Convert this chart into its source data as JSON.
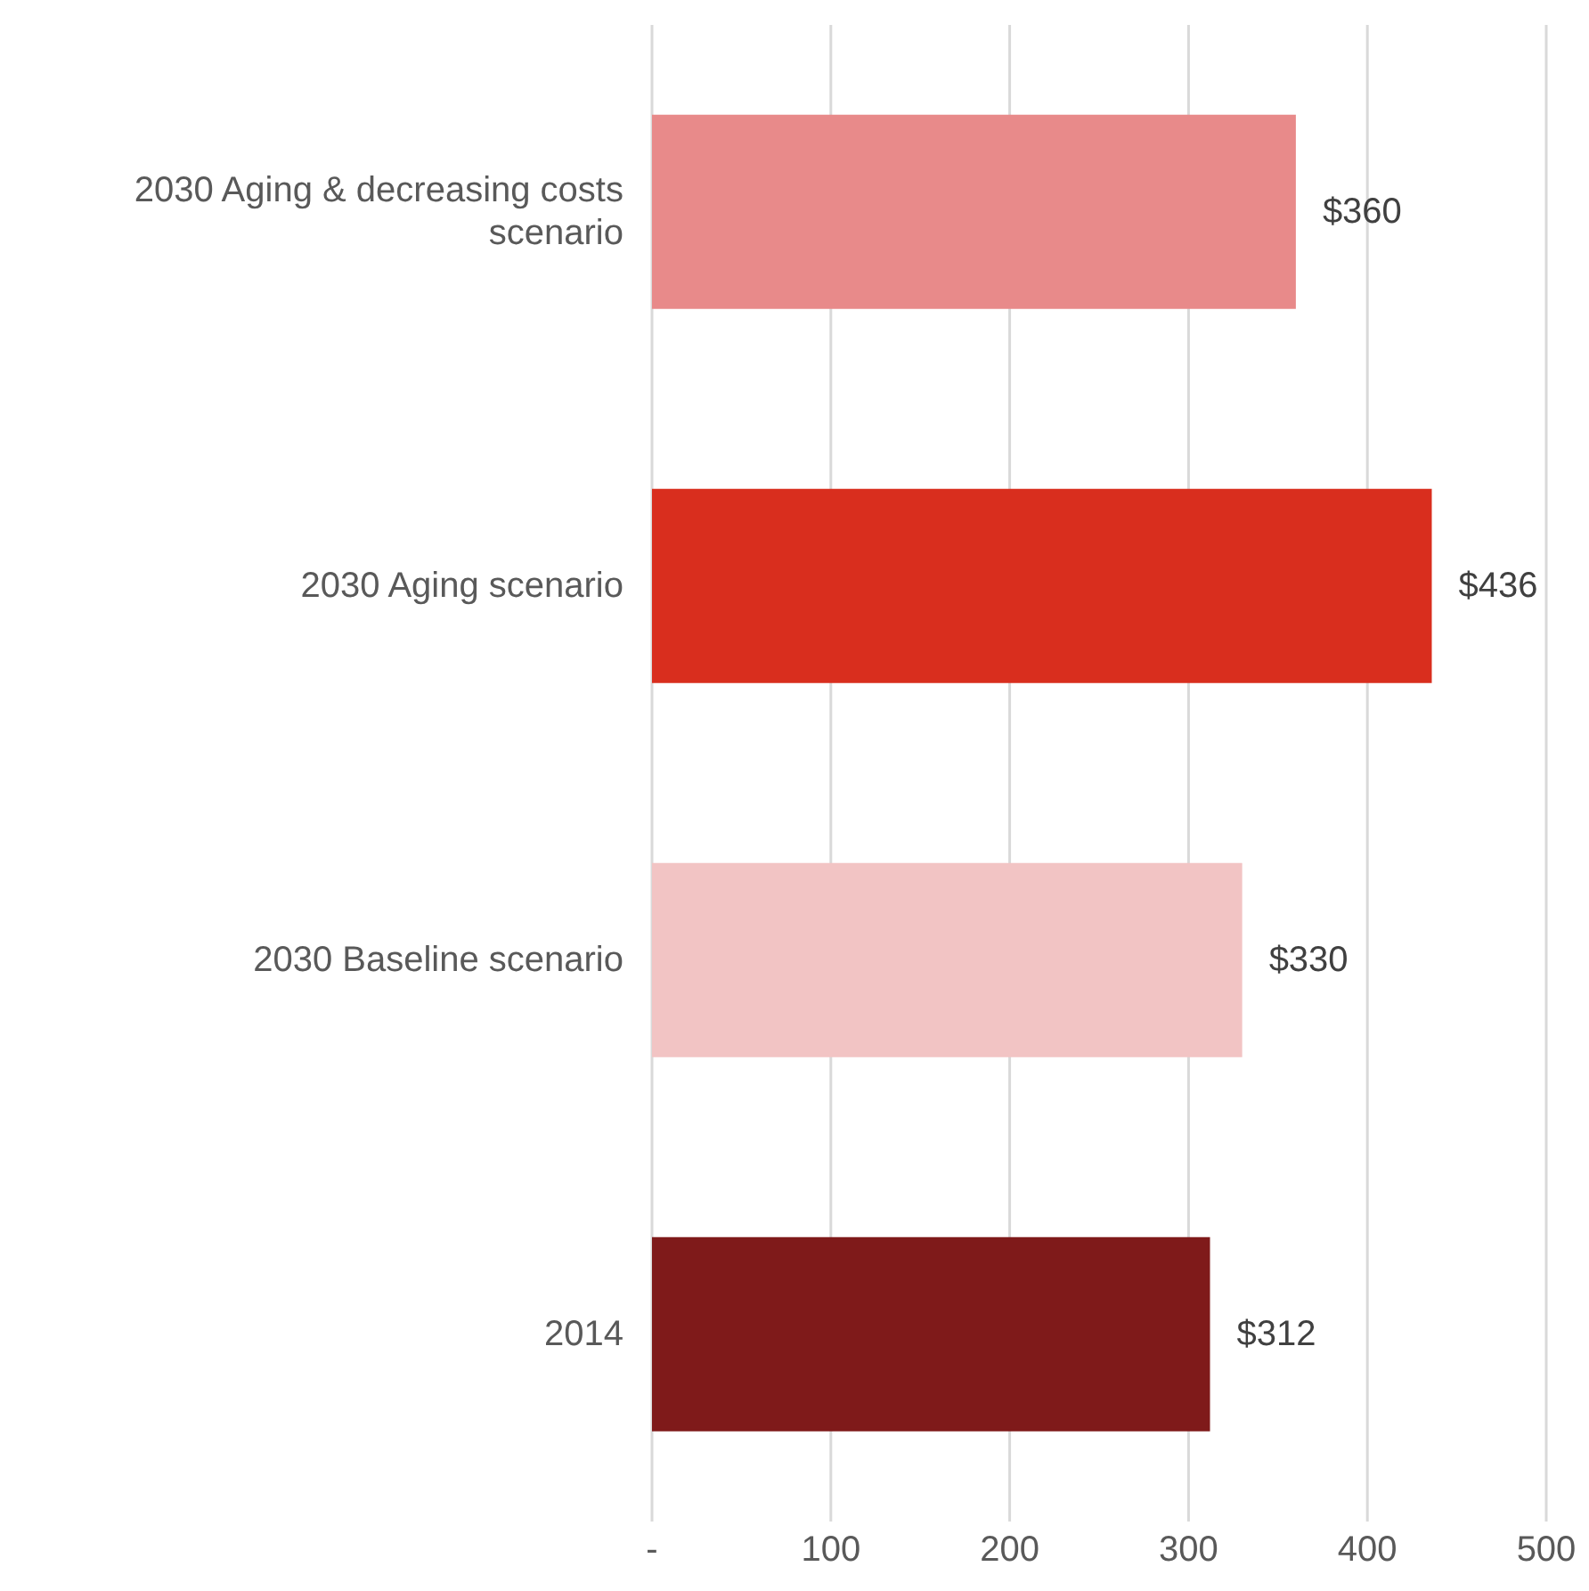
{
  "chart_data": {
    "type": "bar",
    "orientation": "horizontal",
    "categories": [
      "2030 Aging & decreasing costs scenario",
      "2030 Aging scenario",
      "2030 Baseline scenario",
      "2014"
    ],
    "values": [
      360,
      436,
      330,
      312
    ],
    "colors": [
      "#e88a8a",
      "#d92e1e",
      "#f2c4c4",
      "#7f1a1a"
    ],
    "value_labels": [
      "$360",
      "$436",
      "$330",
      "$312"
    ],
    "xlim": [
      0,
      500
    ],
    "xticks": [
      {
        "value": 0,
        "label": "-"
      },
      100,
      200,
      300,
      400,
      500
    ],
    "grid": "x"
  }
}
